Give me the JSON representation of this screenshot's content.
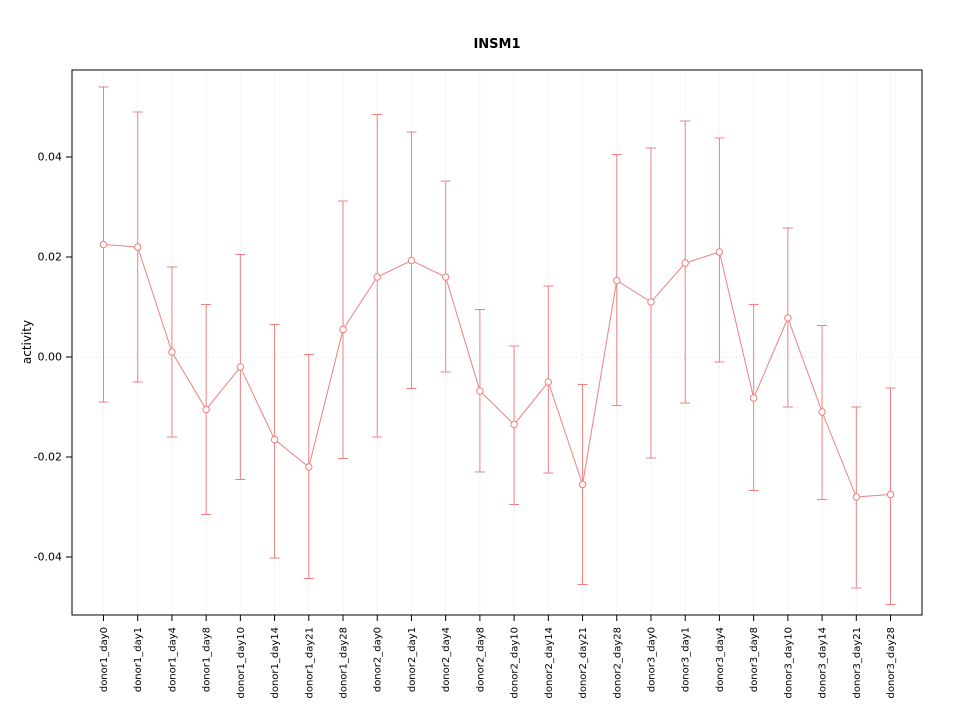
{
  "title": "INSM1",
  "colors": {
    "series": "#f08080",
    "grid": "#dcdcdc",
    "axis": "#000000",
    "background": "#ffffff"
  },
  "y_axis": {
    "label": "activity",
    "tick_labels": [
      "-0.04",
      "-0.02",
      "0.00",
      "0.02",
      "0.04"
    ]
  },
  "chart_data": {
    "type": "line",
    "title": "INSM1",
    "xlabel": "",
    "ylabel": "activity",
    "legend": "none",
    "marker": "open-circle",
    "error_bars": true,
    "grid": {
      "vertical": "dotted at each category",
      "horizontal": "dotted at y=0"
    },
    "ylim": [
      -0.0516,
      0.0574
    ],
    "yticks": [
      -0.04,
      -0.02,
      0,
      0.02,
      0.04
    ],
    "ytick_labels": [
      "-0.04",
      "-0.02",
      "0.00",
      "0.02",
      "0.04"
    ],
    "categories": [
      "donor1_day0",
      "donor1_day1",
      "donor1_day4",
      "donor1_day8",
      "donor1_day10",
      "donor1_day14",
      "donor1_day21",
      "donor1_day28",
      "donor2_day0",
      "donor2_day1",
      "donor2_day4",
      "donor2_day8",
      "donor2_day10",
      "donor2_day14",
      "donor2_day21",
      "donor2_day28",
      "donor3_day0",
      "donor3_day1",
      "donor3_day4",
      "donor3_day8",
      "donor3_day10",
      "donor3_day14",
      "donor3_day21",
      "donor3_day28"
    ],
    "series": [
      {
        "name": "INSM1 activity",
        "values": [
          0.0225,
          0.022,
          0.001,
          -0.0105,
          -0.002,
          -0.0165,
          -0.022,
          0.0055,
          0.016,
          0.0193,
          0.016,
          -0.0068,
          -0.0135,
          -0.005,
          -0.0255,
          0.0153,
          0.011,
          0.0188,
          0.021,
          -0.0082,
          0.0078,
          -0.011,
          -0.028,
          -0.0275
        ],
        "upper": [
          0.054,
          0.049,
          0.018,
          0.0105,
          0.0205,
          0.0065,
          0.0005,
          0.0312,
          0.0485,
          0.045,
          0.0352,
          0.0095,
          0.0022,
          0.0142,
          -0.0055,
          0.0405,
          0.0418,
          0.0472,
          0.0438,
          0.0105,
          0.0258,
          0.0063,
          -0.01,
          -0.0062
        ],
        "lower": [
          -0.009,
          -0.005,
          -0.016,
          -0.0315,
          -0.0245,
          -0.0402,
          -0.0443,
          -0.0203,
          -0.016,
          -0.0063,
          -0.003,
          -0.023,
          -0.0295,
          -0.0232,
          -0.0455,
          -0.0097,
          -0.0202,
          -0.0092,
          -0.001,
          -0.0267,
          -0.01,
          -0.0285,
          -0.0462,
          -0.0495
        ]
      }
    ]
  }
}
